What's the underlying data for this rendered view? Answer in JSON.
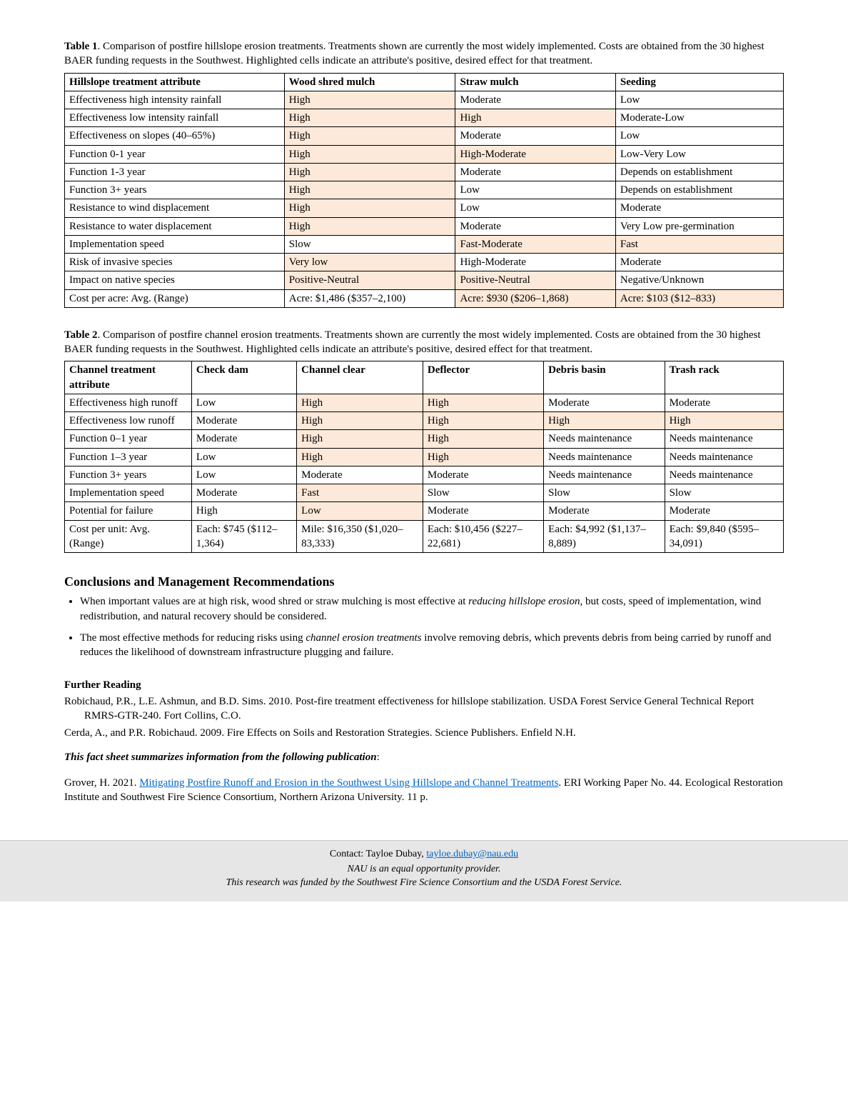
{
  "table1": {
    "caption_bold": "Table 1",
    "caption_rest": ". Comparison of postfire hillslope erosion treatments. Treatments shown are currently the most widely implemented. Costs are obtained from the 30 highest BAER funding requests in the Southwest. Highlighted cells indicate an attribute's positive, desired effect for that treatment.",
    "headers": [
      "Hillslope treatment attribute",
      "Wood shred mulch",
      "Straw mulch",
      "Seeding"
    ],
    "rows": [
      {
        "attr": "Effectiveness high intensity rainfall",
        "c1": {
          "v": "High",
          "hl": true
        },
        "c2": {
          "v": "Moderate",
          "hl": false
        },
        "c3": {
          "v": "Low",
          "hl": false
        }
      },
      {
        "attr": "Effectiveness low intensity rainfall",
        "c1": {
          "v": "High",
          "hl": true
        },
        "c2": {
          "v": "High",
          "hl": true
        },
        "c3": {
          "v": "Moderate-Low",
          "hl": false
        }
      },
      {
        "attr": "Effectiveness on slopes (40–65%)",
        "c1": {
          "v": "High",
          "hl": true
        },
        "c2": {
          "v": "Moderate",
          "hl": false
        },
        "c3": {
          "v": "Low",
          "hl": false
        }
      },
      {
        "attr": "Function 0-1 year",
        "c1": {
          "v": "High",
          "hl": true
        },
        "c2": {
          "v": "High-Moderate",
          "hl": true
        },
        "c3": {
          "v": "Low-Very Low",
          "hl": false
        }
      },
      {
        "attr": "Function 1-3 year",
        "c1": {
          "v": "High",
          "hl": true
        },
        "c2": {
          "v": "Moderate",
          "hl": false
        },
        "c3": {
          "v": "Depends on establishment",
          "hl": false
        }
      },
      {
        "attr": "Function 3+ years",
        "c1": {
          "v": "High",
          "hl": true
        },
        "c2": {
          "v": "Low",
          "hl": false
        },
        "c3": {
          "v": "Depends on establishment",
          "hl": false
        }
      },
      {
        "attr": "Resistance to wind displacement",
        "c1": {
          "v": "High",
          "hl": true
        },
        "c2": {
          "v": "Low",
          "hl": false
        },
        "c3": {
          "v": "Moderate",
          "hl": false
        }
      },
      {
        "attr": "Resistance to water displacement",
        "c1": {
          "v": "High",
          "hl": true
        },
        "c2": {
          "v": "Moderate",
          "hl": false
        },
        "c3": {
          "v": "Very Low pre-germination",
          "hl": false
        }
      },
      {
        "attr": "Implementation speed",
        "c1": {
          "v": "Slow",
          "hl": false
        },
        "c2": {
          "v": "Fast-Moderate",
          "hl": true
        },
        "c3": {
          "v": "Fast",
          "hl": true
        }
      },
      {
        "attr": "Risk of invasive species",
        "c1": {
          "v": "Very low",
          "hl": true
        },
        "c2": {
          "v": "High-Moderate",
          "hl": false
        },
        "c3": {
          "v": "Moderate",
          "hl": false
        }
      },
      {
        "attr": "Impact on native species",
        "c1": {
          "v": "Positive-Neutral",
          "hl": true
        },
        "c2": {
          "v": "Positive-Neutral",
          "hl": true
        },
        "c3": {
          "v": "Negative/Unknown",
          "hl": false
        }
      },
      {
        "attr": "Cost per acre: Avg. (Range)",
        "c1": {
          "v": "Acre: $1,486 ($357–2,100)",
          "hl": false
        },
        "c2": {
          "v": "Acre: $930 ($206–1,868)",
          "hl": true
        },
        "c3": {
          "v": "Acre: $103 ($12–833)",
          "hl": true
        }
      }
    ]
  },
  "table2": {
    "caption_bold": "Table 2",
    "caption_rest": ". Comparison of postfire channel erosion treatments. Treatments shown are currently the most widely implemented. Costs are obtained from the 30 highest BAER funding requests in the Southwest. Highlighted cells indicate an attribute's positive, desired effect for that treatment.",
    "headers": [
      "Channel treatment attribute",
      "Check dam",
      "Channel clear",
      "Deflector",
      "Debris basin",
      "Trash rack"
    ],
    "rows": [
      {
        "attr": "Effectiveness high runoff",
        "c": [
          {
            "v": "Low",
            "hl": false
          },
          {
            "v": "High",
            "hl": true
          },
          {
            "v": "High",
            "hl": true
          },
          {
            "v": "Moderate",
            "hl": false
          },
          {
            "v": "Moderate",
            "hl": false
          }
        ]
      },
      {
        "attr": "Effectiveness low runoff",
        "c": [
          {
            "v": "Moderate",
            "hl": false
          },
          {
            "v": "High",
            "hl": true
          },
          {
            "v": "High",
            "hl": true
          },
          {
            "v": "High",
            "hl": true
          },
          {
            "v": "High",
            "hl": true
          }
        ]
      },
      {
        "attr": "Function 0–1 year",
        "c": [
          {
            "v": "Moderate",
            "hl": false
          },
          {
            "v": "High",
            "hl": true
          },
          {
            "v": "High",
            "hl": true
          },
          {
            "v": "Needs maintenance",
            "hl": false
          },
          {
            "v": "Needs maintenance",
            "hl": false
          }
        ]
      },
      {
        "attr": "Function 1–3 year",
        "c": [
          {
            "v": "Low",
            "hl": false
          },
          {
            "v": "High",
            "hl": true
          },
          {
            "v": "High",
            "hl": true
          },
          {
            "v": "Needs maintenance",
            "hl": false
          },
          {
            "v": "Needs maintenance",
            "hl": false
          }
        ]
      },
      {
        "attr": "Function 3+ years",
        "c": [
          {
            "v": "Low",
            "hl": false
          },
          {
            "v": "Moderate",
            "hl": false
          },
          {
            "v": "Moderate",
            "hl": false
          },
          {
            "v": "Needs maintenance",
            "hl": false
          },
          {
            "v": "Needs maintenance",
            "hl": false
          }
        ]
      },
      {
        "attr": "Implementation speed",
        "c": [
          {
            "v": "Moderate",
            "hl": false
          },
          {
            "v": "Fast",
            "hl": true
          },
          {
            "v": "Slow",
            "hl": false
          },
          {
            "v": "Slow",
            "hl": false
          },
          {
            "v": "Slow",
            "hl": false
          }
        ]
      },
      {
        "attr": "Potential for failure",
        "c": [
          {
            "v": "High",
            "hl": false
          },
          {
            "v": "Low",
            "hl": true
          },
          {
            "v": "Moderate",
            "hl": false
          },
          {
            "v": "Moderate",
            "hl": false
          },
          {
            "v": "Moderate",
            "hl": false
          }
        ]
      },
      {
        "attr": "Cost per unit: Avg. (Range)",
        "c": [
          {
            "v": "Each: $745 ($112–1,364)",
            "hl": false
          },
          {
            "v": "Mile: $16,350 ($1,020–83,333)",
            "hl": false
          },
          {
            "v": "Each: $10,456 ($227–22,681)",
            "hl": false
          },
          {
            "v": "Each: $4,992 ($1,137–8,889)",
            "hl": false
          },
          {
            "v": "Each: $9,840 ($595–34,091)",
            "hl": false
          }
        ]
      }
    ]
  },
  "conclusions": {
    "heading": "Conclusions and Management Recommendations",
    "bullet1_a": "When important values are at high risk, wood shred or straw mulching is most effective at ",
    "bullet1_ital": "reducing hillslope erosion",
    "bullet1_b": ", but costs, speed of implementation, wind redistribution, and natural recovery should be considered.",
    "bullet2_a": "The most effective methods for reducing risks using ",
    "bullet2_ital": "channel erosion treatments",
    "bullet2_b": " involve removing debris, which prevents debris from being carried by runoff and reduces the likelihood of downstream infrastructure plugging and failure."
  },
  "further": {
    "heading": "Further Reading",
    "ref1": "Robichaud, P.R., L.E. Ashmun, and B.D. Sims. 2010. Post-fire treatment effectiveness for hillslope stabilization. USDA Forest Service General Technical Report RMRS-GTR-240. Fort Collins, C.O.",
    "ref2": "Cerda, A., and P.R. Robichaud. 2009. Fire Effects on Soils and Restoration Strategies. Science Publishers. Enfield N.H.",
    "src_intro": "This fact sheet summarizes information from the following publication",
    "src_a": "Grover, H. 2021. ",
    "src_link": "Mitigating Postfire Runoff and Erosion in the Southwest Using Hillslope and Channel Treatments",
    "src_b": ". ERI Working Paper No. 44. Ecological Restoration Institute and Southwest Fire Science Consortium, Northern Arizona University. 11 p."
  },
  "footer": {
    "contact_label": "Contact: Tayloe Dubay, ",
    "contact_email": "tayloe.dubay@nau.edu",
    "line2": "NAU is an equal opportunity provider.",
    "line3": "This research was funded by the Southwest Fire Science Consortium and the USDA Forest Service."
  }
}
